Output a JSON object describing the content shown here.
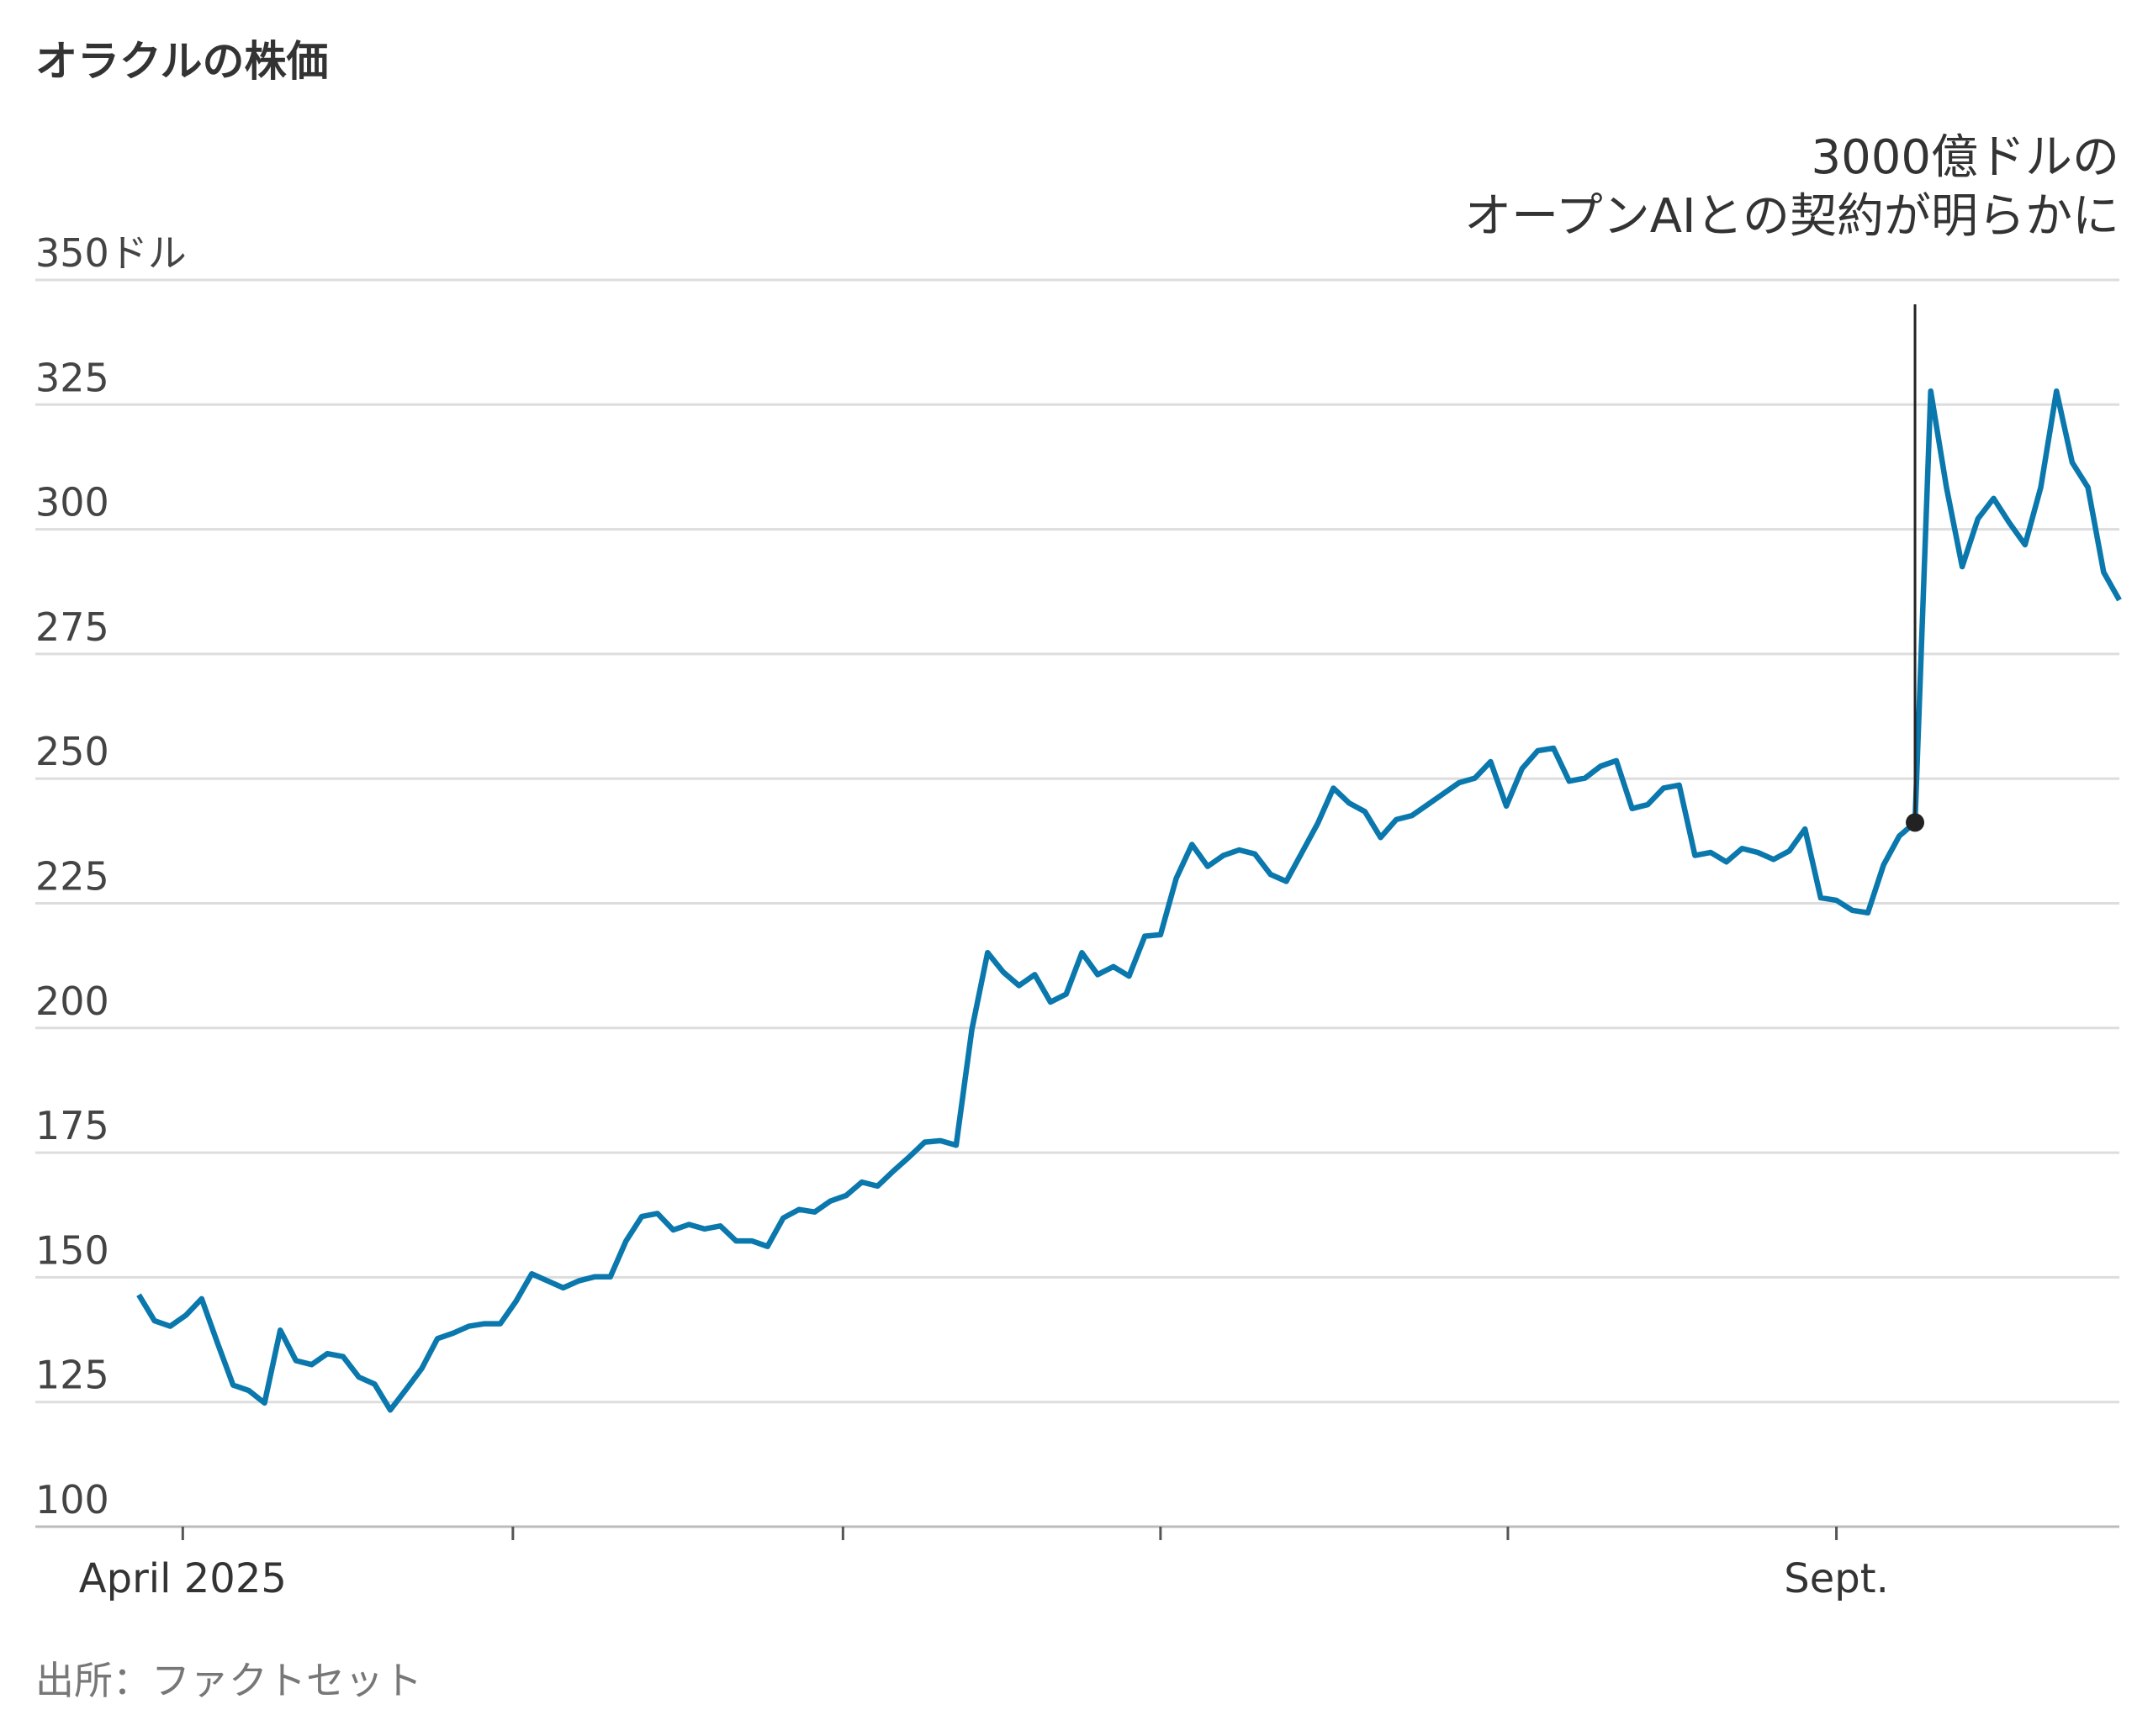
{
  "chart_data": {
    "type": "line",
    "title": "オラクルの株価",
    "source": "出所：ファクトセット",
    "color": "#0a78ad",
    "grid": true,
    "annotation": {
      "text_lines": [
        "3000億ドルの",
        "オープンAIとの契約が明らかに"
      ],
      "x": 113
    },
    "xlim": [
      0,
      126
    ],
    "xticks": [
      {
        "value": 2.8,
        "label": "April 2025"
      },
      {
        "value": 23.8,
        "label": null
      },
      {
        "value": 44.8,
        "label": null
      },
      {
        "value": 65.0,
        "label": null
      },
      {
        "value": 87.1,
        "label": null
      },
      {
        "value": 108.0,
        "label": "Sept."
      }
    ],
    "ylim": [
      100,
      350
    ],
    "yticks": [
      100,
      125,
      150,
      175,
      200,
      225,
      250,
      275,
      300,
      325,
      {
        "value": 350,
        "label": "350ドル"
      }
    ],
    "values": [
      146.5,
      141.3,
      140.2,
      142.4,
      145.7,
      136.9,
      128.4,
      127.3,
      124.8,
      139.4,
      133.3,
      132.5,
      134.7,
      134.1,
      130.0,
      128.6,
      123.4,
      127.5,
      131.7,
      137.7,
      138.8,
      140.2,
      140.7,
      140.7,
      145.2,
      150.7,
      149.3,
      147.9,
      149.3,
      150.1,
      150.1,
      157.3,
      162.2,
      162.8,
      159.5,
      160.6,
      159.7,
      160.3,
      157.3,
      157.3,
      156.2,
      161.9,
      163.6,
      163.1,
      165.3,
      166.4,
      169.1,
      168.3,
      171.3,
      174.1,
      177.1,
      177.4,
      176.5,
      199.7,
      215.1,
      211.2,
      208.5,
      210.7,
      205.2,
      206.8,
      215.1,
      210.7,
      212.3,
      210.4,
      218.4,
      218.7,
      230.0,
      236.8,
      232.4,
      234.6,
      235.7,
      234.9,
      230.8,
      229.4,
      235.2,
      241.0,
      248.1,
      245.1,
      243.4,
      238.2,
      241.8,
      242.6,
      244.8,
      247.0,
      249.2,
      250.1,
      253.4,
      244.5,
      252.0,
      255.6,
      256.1,
      249.5,
      250.1,
      252.5,
      253.6,
      244.0,
      244.8,
      248.1,
      248.7,
      234.6,
      235.2,
      233.3,
      236.0,
      235.2,
      233.8,
      235.5,
      239.9,
      226.1,
      225.6,
      223.6,
      223.1,
      232.7,
      238.5,
      241.2,
      327.7,
      308.4,
      292.5,
      302.1,
      306.2,
      301.3,
      296.9,
      308.4,
      327.7,
      313.4,
      308.4,
      291.4,
      285.8
    ]
  }
}
